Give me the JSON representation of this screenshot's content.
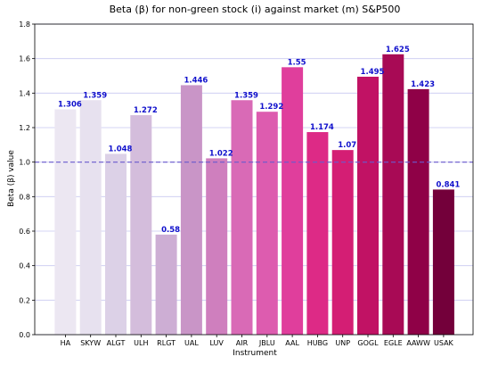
{
  "chart_data": {
    "type": "bar",
    "title": "Beta (β) for non-green stock (i) against market (m) S&P500",
    "xlabel": "Instrument",
    "ylabel": "Beta (β) value",
    "ylim": [
      0,
      1.8
    ],
    "yticks": [
      "0.0",
      "0.2",
      "0.4",
      "0.6",
      "0.8",
      "1.0",
      "1.2",
      "1.4",
      "1.6",
      "1.8"
    ],
    "grid": "horizontal",
    "reference_line": {
      "value": 1.0,
      "style": "dashed",
      "color": "#6a5acd"
    },
    "categories": [
      "HA",
      "SKYW",
      "ALGT",
      "ULH",
      "RLGT",
      "UAL",
      "LUV",
      "AIR",
      "JBLU",
      "AAL",
      "HUBG",
      "UNP",
      "GOGL",
      "EGLE",
      "AAWW",
      "USAK"
    ],
    "values": [
      1.306,
      1.359,
      1.048,
      1.272,
      0.58,
      1.446,
      1.022,
      1.359,
      1.292,
      1.55,
      1.174,
      1.07,
      1.495,
      1.625,
      1.423,
      0.841
    ],
    "value_labels": [
      "1.306",
      "1.359",
      "1.048",
      "1.272",
      "0.58",
      "1.446",
      "1.022",
      "1.359",
      "1.292",
      "1.55",
      "1.174",
      "1.07",
      "1.495",
      "1.625",
      "1.423",
      "0.841"
    ],
    "bar_colors": [
      "#ece7f2",
      "#e7e1ef",
      "#dcd1e7",
      "#d4bddc",
      "#cdaed4",
      "#c995c7",
      "#cf7fbe",
      "#d96ab6",
      "#dd5caf",
      "#e03e9c",
      "#dd2a86",
      "#d41e74",
      "#c11264",
      "#a80a55",
      "#8f0147",
      "#73003a"
    ],
    "label_color": "#1010cc",
    "gridline_color": "#c8c8f0"
  }
}
